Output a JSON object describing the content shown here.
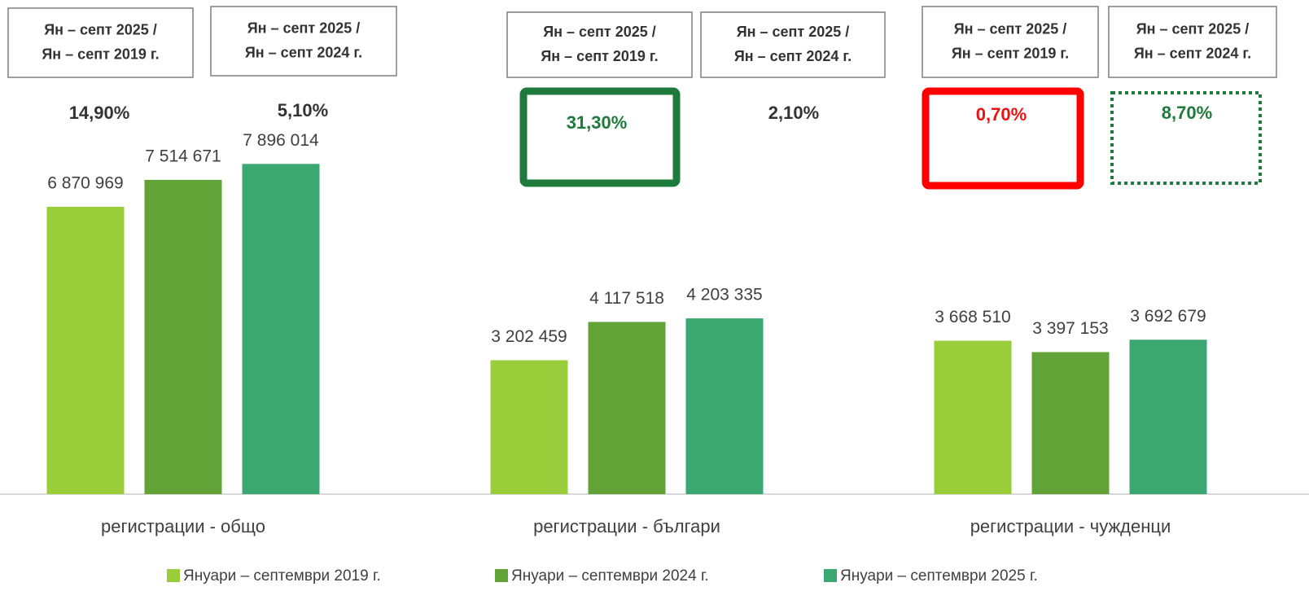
{
  "chart_data": {
    "type": "bar",
    "categories": [
      "регистрации - общо",
      "регистрации - българи",
      "регистрации - чужденци"
    ],
    "series": [
      {
        "name": "Януари – септември 2019 г.",
        "color": "#9acd3a",
        "values": [
          6870969,
          3202459,
          3668510
        ],
        "value_labels": [
          "6 870 969",
          "3 202 459",
          "3 668 510"
        ]
      },
      {
        "name": "Януари – септември 2024 г.",
        "color": "#62a337",
        "values": [
          7514671,
          4117518,
          3397153
        ],
        "value_labels": [
          "7 514 671",
          "4 117 518",
          "3 397 153"
        ]
      },
      {
        "name": "Януари – септември 2025 г.",
        "color": "#3aa870",
        "values": [
          7896014,
          4203335,
          3692679
        ],
        "value_labels": [
          "7 896 014",
          "4 203 335",
          "3 692 679"
        ]
      }
    ],
    "ylim": [
      0,
      8000000
    ],
    "legend": "bottom",
    "annotations": [
      {
        "header": [
          "Ян – септ 2025 /",
          "Ян – септ 2019 г."
        ],
        "text": "14,90%",
        "color": "#333333"
      },
      {
        "header": [
          "Ян – септ 2025 /",
          "Ян – септ 2024 г."
        ],
        "text": "5,10%",
        "color": "#333333"
      },
      {
        "header": [
          "Ян – септ 2025 /",
          "Ян – септ 2019 г."
        ],
        "text": "31,30%",
        "color": "#1e7a3a",
        "frame": "solid",
        "frame_color": "#1e7a3a"
      },
      {
        "header": [
          "Ян – септ 2025 /",
          "Ян – септ 2024 г."
        ],
        "text": "2,10%",
        "color": "#333333"
      },
      {
        "header": [
          "Ян – септ 2025 /",
          "Ян – септ 2019 г."
        ],
        "text": "0,70%",
        "color": "#ee1111",
        "frame": "solid",
        "frame_color": "#ff0000"
      },
      {
        "header": [
          "Ян – септ 2025 /",
          "Ян – септ 2024 г."
        ],
        "text": "8,70%",
        "color": "#1e7a3a",
        "frame": "dotted",
        "frame_color": "#1e7a3a"
      }
    ]
  }
}
